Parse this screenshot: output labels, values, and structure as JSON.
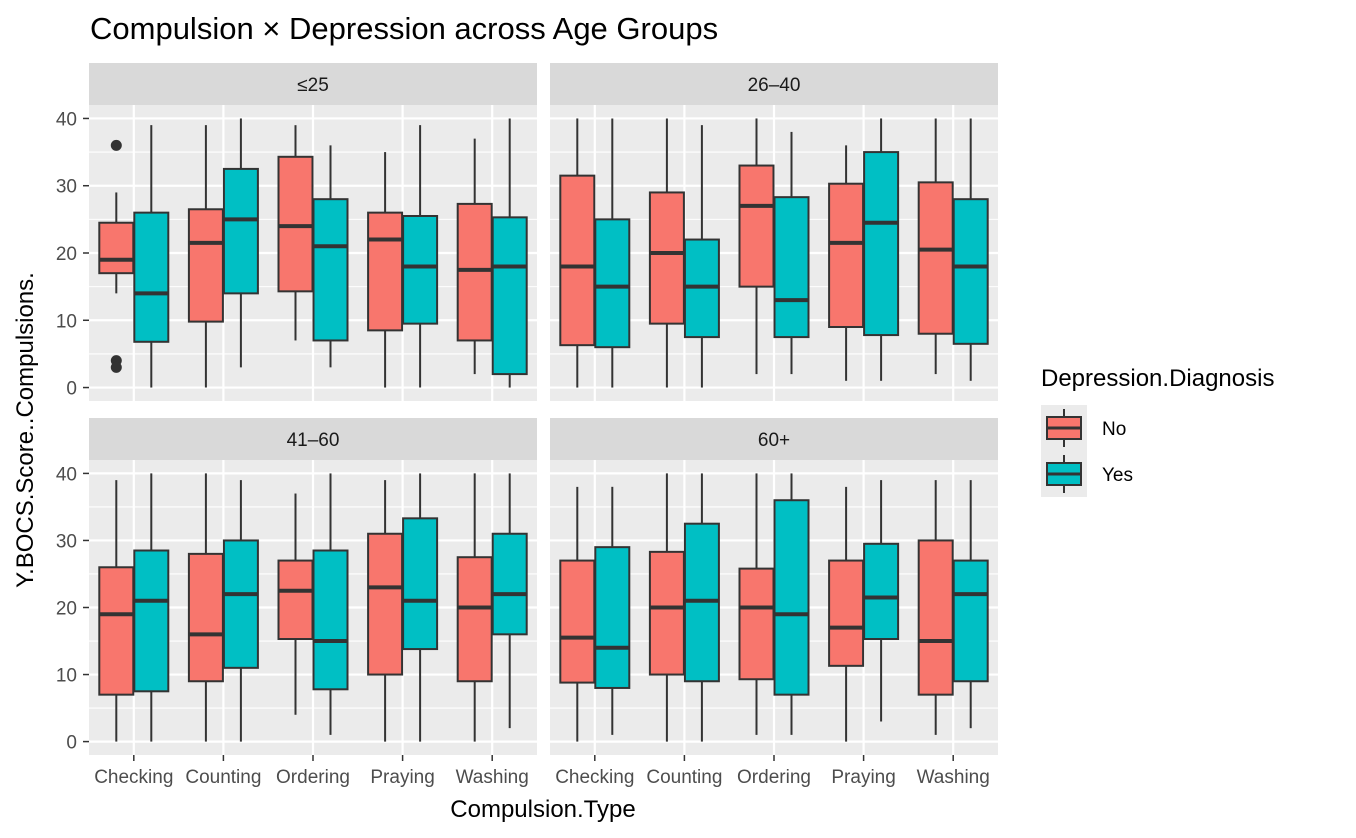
{
  "chart_data": {
    "type": "boxplot",
    "title": "Compulsion × Depression across Age Groups",
    "xlabel": "Compulsion.Type",
    "ylabel": "Y.BOCS.Score..Compulsions.",
    "ylim": [
      -2,
      42
    ],
    "yticks": [
      0,
      10,
      20,
      30,
      40
    ],
    "ytick_labels": [
      "0",
      "10",
      "20",
      "30",
      "40"
    ],
    "categories": [
      "Checking",
      "Counting",
      "Ordering",
      "Praying",
      "Washing"
    ],
    "legend": {
      "title": "Depression.Diagnosis",
      "position": "right",
      "entries": [
        {
          "key": "No",
          "label": "No",
          "color": "#F8766D"
        },
        {
          "key": "Yes",
          "label": "Yes",
          "color": "#00BFC4"
        }
      ]
    },
    "colors": {
      "panel_bg": "#EBEBEB",
      "strip_bg": "#D9D9D9",
      "grid": "#FFFFFF",
      "box_line": "#333333"
    },
    "panels": [
      {
        "label": "≤25",
        "groups": [
          {
            "category": "Checking",
            "No": {
              "min": 14,
              "q1": 17,
              "median": 19,
              "q3": 24.5,
              "max": 29,
              "outliers": [
                36,
                4,
                3
              ]
            },
            "Yes": {
              "min": 0,
              "q1": 6.8,
              "median": 14,
              "q3": 26,
              "max": 39,
              "outliers": []
            }
          },
          {
            "category": "Counting",
            "No": {
              "min": 0,
              "q1": 9.8,
              "median": 21.5,
              "q3": 26.5,
              "max": 39,
              "outliers": []
            },
            "Yes": {
              "min": 3,
              "q1": 14,
              "median": 25,
              "q3": 32.5,
              "max": 40,
              "outliers": []
            }
          },
          {
            "category": "Ordering",
            "No": {
              "min": 7,
              "q1": 14.3,
              "median": 24,
              "q3": 34.3,
              "max": 39,
              "outliers": []
            },
            "Yes": {
              "min": 3,
              "q1": 7,
              "median": 21,
              "q3": 28,
              "max": 36,
              "outliers": []
            }
          },
          {
            "category": "Praying",
            "No": {
              "min": 0,
              "q1": 8.5,
              "median": 22,
              "q3": 26,
              "max": 35,
              "outliers": []
            },
            "Yes": {
              "min": 0,
              "q1": 9.5,
              "median": 18,
              "q3": 25.5,
              "max": 39,
              "outliers": []
            }
          },
          {
            "category": "Washing",
            "No": {
              "min": 2,
              "q1": 7,
              "median": 17.5,
              "q3": 27.3,
              "max": 37,
              "outliers": []
            },
            "Yes": {
              "min": 0,
              "q1": 2,
              "median": 18,
              "q3": 25.3,
              "max": 40,
              "outliers": []
            }
          }
        ]
      },
      {
        "label": "26–40",
        "groups": [
          {
            "category": "Checking",
            "No": {
              "min": 0,
              "q1": 6.3,
              "median": 18,
              "q3": 31.5,
              "max": 40,
              "outliers": []
            },
            "Yes": {
              "min": 0,
              "q1": 6,
              "median": 15,
              "q3": 25,
              "max": 40,
              "outliers": []
            }
          },
          {
            "category": "Counting",
            "No": {
              "min": 0,
              "q1": 9.5,
              "median": 20,
              "q3": 29,
              "max": 40,
              "outliers": []
            },
            "Yes": {
              "min": 0,
              "q1": 7.5,
              "median": 15,
              "q3": 22,
              "max": 39,
              "outliers": []
            }
          },
          {
            "category": "Ordering",
            "No": {
              "min": 2,
              "q1": 15,
              "median": 27,
              "q3": 33,
              "max": 40,
              "outliers": []
            },
            "Yes": {
              "min": 2,
              "q1": 7.5,
              "median": 13,
              "q3": 28.3,
              "max": 38,
              "outliers": []
            }
          },
          {
            "category": "Praying",
            "No": {
              "min": 1,
              "q1": 9,
              "median": 21.5,
              "q3": 30.3,
              "max": 36,
              "outliers": []
            },
            "Yes": {
              "min": 1,
              "q1": 7.8,
              "median": 24.5,
              "q3": 35,
              "max": 40,
              "outliers": []
            }
          },
          {
            "category": "Washing",
            "No": {
              "min": 2,
              "q1": 8,
              "median": 20.5,
              "q3": 30.5,
              "max": 40,
              "outliers": []
            },
            "Yes": {
              "min": 1,
              "q1": 6.5,
              "median": 18,
              "q3": 28,
              "max": 40,
              "outliers": []
            }
          }
        ]
      },
      {
        "label": "41–60",
        "groups": [
          {
            "category": "Checking",
            "No": {
              "min": 0,
              "q1": 7,
              "median": 19,
              "q3": 26,
              "max": 39,
              "outliers": []
            },
            "Yes": {
              "min": 0,
              "q1": 7.5,
              "median": 21,
              "q3": 28.5,
              "max": 40,
              "outliers": []
            }
          },
          {
            "category": "Counting",
            "No": {
              "min": 0,
              "q1": 9,
              "median": 16,
              "q3": 28,
              "max": 40,
              "outliers": []
            },
            "Yes": {
              "min": 0,
              "q1": 11,
              "median": 22,
              "q3": 30,
              "max": 39,
              "outliers": []
            }
          },
          {
            "category": "Ordering",
            "No": {
              "min": 4,
              "q1": 15.3,
              "median": 22.5,
              "q3": 27,
              "max": 37,
              "outliers": []
            },
            "Yes": {
              "min": 1,
              "q1": 7.8,
              "median": 15,
              "q3": 28.5,
              "max": 40,
              "outliers": []
            }
          },
          {
            "category": "Praying",
            "No": {
              "min": 0,
              "q1": 10,
              "median": 23,
              "q3": 31,
              "max": 39,
              "outliers": []
            },
            "Yes": {
              "min": 0,
              "q1": 13.8,
              "median": 21,
              "q3": 33.3,
              "max": 40,
              "outliers": []
            }
          },
          {
            "category": "Washing",
            "No": {
              "min": 0,
              "q1": 9,
              "median": 20,
              "q3": 27.5,
              "max": 40,
              "outliers": []
            },
            "Yes": {
              "min": 2,
              "q1": 16,
              "median": 22,
              "q3": 31,
              "max": 40,
              "outliers": []
            }
          }
        ]
      },
      {
        "label": "60+",
        "groups": [
          {
            "category": "Checking",
            "No": {
              "min": 0,
              "q1": 8.8,
              "median": 15.5,
              "q3": 27,
              "max": 38,
              "outliers": []
            },
            "Yes": {
              "min": 1,
              "q1": 8,
              "median": 14,
              "q3": 29,
              "max": 38,
              "outliers": []
            }
          },
          {
            "category": "Counting",
            "No": {
              "min": 0,
              "q1": 10,
              "median": 20,
              "q3": 28.3,
              "max": 40,
              "outliers": []
            },
            "Yes": {
              "min": 0,
              "q1": 9,
              "median": 21,
              "q3": 32.5,
              "max": 40,
              "outliers": []
            }
          },
          {
            "category": "Ordering",
            "No": {
              "min": 1,
              "q1": 9.3,
              "median": 20,
              "q3": 25.8,
              "max": 40,
              "outliers": []
            },
            "Yes": {
              "min": 1,
              "q1": 7,
              "median": 19,
              "q3": 36,
              "max": 40,
              "outliers": []
            }
          },
          {
            "category": "Praying",
            "No": {
              "min": 0,
              "q1": 11.3,
              "median": 17,
              "q3": 27,
              "max": 38,
              "outliers": []
            },
            "Yes": {
              "min": 3,
              "q1": 15.3,
              "median": 21.5,
              "q3": 29.5,
              "max": 39,
              "outliers": []
            }
          },
          {
            "category": "Washing",
            "No": {
              "min": 1,
              "q1": 7,
              "median": 15,
              "q3": 30,
              "max": 39,
              "outliers": []
            },
            "Yes": {
              "min": 2,
              "q1": 9,
              "median": 22,
              "q3": 27,
              "max": 39,
              "outliers": []
            }
          }
        ]
      }
    ]
  }
}
